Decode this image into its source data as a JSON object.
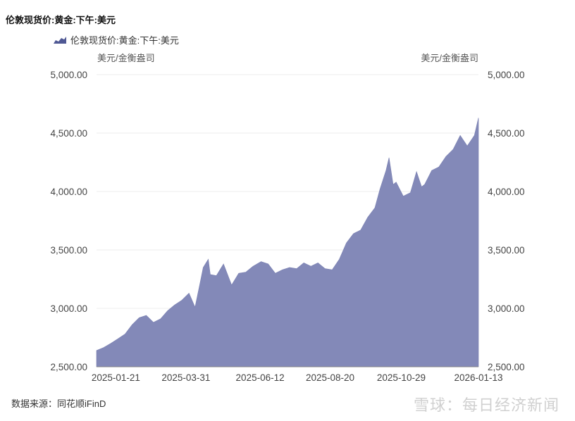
{
  "header": {
    "title": "伦敦现货价:黄金:下午:美元",
    "legend_label": "伦敦现货价:黄金:下午:美元"
  },
  "units": {
    "left": "美元/金衡盎司",
    "right": "美元/金衡盎司"
  },
  "footer": {
    "source": "数据来源：同花顺iFinD",
    "watermark": "雪球：每日经济新闻"
  },
  "colors": {
    "area_fill": "#8389b8",
    "legend_swatch": "#4f5894",
    "grid": "#ececec"
  },
  "chart_data": {
    "type": "area",
    "series": [
      {
        "name": "伦敦现货价:黄金:下午:美元"
      }
    ],
    "ylim": [
      2500,
      5000
    ],
    "yticks": [
      "2,500.00",
      "3,000.00",
      "3,500.00",
      "4,000.00",
      "4,500.00",
      "5,000.00"
    ],
    "xticks": [
      "2025-01-21",
      "2025-03-31",
      "2025-06-12",
      "2025-08-20",
      "2025-10-29",
      "2026-01-13"
    ],
    "x": [
      "2025-01-02",
      "2025-01-09",
      "2025-01-16",
      "2025-01-23",
      "2025-01-30",
      "2025-02-06",
      "2025-02-13",
      "2025-02-20",
      "2025-02-27",
      "2025-03-06",
      "2025-03-13",
      "2025-03-20",
      "2025-03-27",
      "2025-04-03",
      "2025-04-09",
      "2025-04-14",
      "2025-04-17",
      "2025-04-22",
      "2025-04-24",
      "2025-04-30",
      "2025-05-07",
      "2025-05-15",
      "2025-05-22",
      "2025-05-29",
      "2025-06-05",
      "2025-06-13",
      "2025-06-20",
      "2025-06-27",
      "2025-07-04",
      "2025-07-11",
      "2025-07-18",
      "2025-07-25",
      "2025-08-01",
      "2025-08-08",
      "2025-08-15",
      "2025-08-22",
      "2025-08-29",
      "2025-09-05",
      "2025-09-12",
      "2025-09-19",
      "2025-09-26",
      "2025-10-03",
      "2025-10-08",
      "2025-10-14",
      "2025-10-17",
      "2025-10-21",
      "2025-10-24",
      "2025-10-31",
      "2025-11-07",
      "2025-11-13",
      "2025-11-18",
      "2025-11-21",
      "2025-11-28",
      "2025-12-05",
      "2025-12-12",
      "2025-12-19",
      "2025-12-26",
      "2026-01-02",
      "2026-01-09",
      "2026-01-13"
    ],
    "values": [
      2640,
      2665,
      2700,
      2740,
      2780,
      2860,
      2920,
      2940,
      2880,
      2910,
      2980,
      3030,
      3070,
      3130,
      3010,
      3220,
      3350,
      3420,
      3290,
      3280,
      3380,
      3200,
      3300,
      3310,
      3360,
      3400,
      3380,
      3300,
      3330,
      3350,
      3340,
      3390,
      3360,
      3390,
      3340,
      3330,
      3420,
      3560,
      3640,
      3670,
      3780,
      3860,
      4020,
      4180,
      4290,
      4060,
      4080,
      3960,
      3990,
      4170,
      4040,
      4060,
      4180,
      4210,
      4300,
      4360,
      4480,
      4390,
      4480,
      4630
    ]
  }
}
